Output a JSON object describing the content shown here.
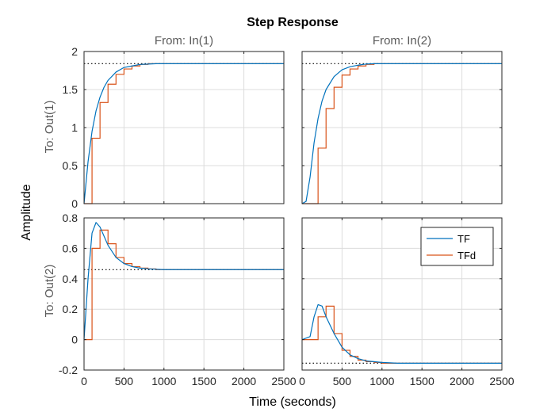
{
  "chart_data": {
    "type": "line",
    "title": "Step Response",
    "xlabel": "Time (seconds)",
    "ylabel": "Amplitude",
    "column_titles": [
      "From: In(1)",
      "From: In(2)"
    ],
    "row_labels": [
      "To: Out(1)",
      "To: Out(2)"
    ],
    "xlim": [
      0,
      2500
    ],
    "x_ticks": [
      0,
      500,
      1000,
      1500,
      2000,
      2500
    ],
    "grid": true,
    "legend": {
      "placement": "top-right",
      "panel": "out2-in2",
      "entries": [
        "TF",
        "TFd"
      ]
    },
    "colors": {
      "TF": "#0072BD",
      "TFd": "#D95319",
      "steady_state": "#000000"
    },
    "row_axes": [
      {
        "ylim": [
          0,
          2
        ],
        "y_ticks": [
          0,
          0.5,
          1,
          1.5,
          2
        ],
        "y_tick_labels": [
          "0",
          "0.5",
          "1",
          "1.5",
          "2"
        ]
      },
      {
        "ylim": [
          -0.2,
          0.8
        ],
        "y_ticks": [
          -0.2,
          0,
          0.2,
          0.4,
          0.6,
          0.8
        ],
        "y_tick_labels": [
          "-0.2",
          "0",
          "0.2",
          "0.4",
          "0.6",
          "0.8"
        ]
      }
    ],
    "panels": [
      {
        "id": "out1-in1",
        "row": 0,
        "col": 0,
        "steady_state": 1.84,
        "series": [
          {
            "name": "TF",
            "x": [
              0,
              50,
              100,
              150,
              200,
              250,
              300,
              400,
              500,
              600,
              700,
              800,
              900,
              1000,
              1200,
              1500,
              2000,
              2500
            ],
            "y": [
              0,
              0.55,
              0.95,
              1.22,
              1.4,
              1.53,
              1.62,
              1.73,
              1.79,
              1.81,
              1.83,
              1.835,
              1.84,
              1.84,
              1.84,
              1.84,
              1.84,
              1.84
            ]
          },
          {
            "name": "TFd",
            "x": [
              0,
              100,
              200,
              300,
              400,
              500,
              600,
              700,
              800,
              900,
              1000,
              2500
            ],
            "y": [
              0,
              0.86,
              1.33,
              1.57,
              1.7,
              1.77,
              1.81,
              1.83,
              1.84,
              1.84,
              1.84,
              1.84
            ]
          }
        ]
      },
      {
        "id": "out1-in2",
        "row": 0,
        "col": 1,
        "steady_state": 1.84,
        "series": [
          {
            "name": "TF",
            "x": [
              0,
              50,
              100,
              150,
              200,
              250,
              300,
              400,
              500,
              600,
              700,
              800,
              900,
              1000,
              1200,
              1500,
              2000,
              2500
            ],
            "y": [
              0,
              0.03,
              0.35,
              0.8,
              1.12,
              1.35,
              1.5,
              1.67,
              1.76,
              1.8,
              1.82,
              1.835,
              1.84,
              1.84,
              1.84,
              1.84,
              1.84,
              1.84
            ]
          },
          {
            "name": "TFd",
            "x": [
              0,
              200,
              300,
              400,
              500,
              600,
              700,
              800,
              900,
              1000,
              2500
            ],
            "y": [
              0,
              0.73,
              1.25,
              1.53,
              1.69,
              1.77,
              1.81,
              1.83,
              1.84,
              1.84,
              1.84
            ]
          }
        ]
      },
      {
        "id": "out2-in1",
        "row": 1,
        "col": 0,
        "steady_state": 0.46,
        "series": [
          {
            "name": "TF",
            "x": [
              0,
              50,
              100,
              150,
              200,
              250,
              300,
              400,
              500,
              600,
              700,
              800,
              1000,
              1200,
              1500,
              2000,
              2500
            ],
            "y": [
              0,
              0.4,
              0.7,
              0.77,
              0.74,
              0.68,
              0.62,
              0.54,
              0.5,
              0.48,
              0.47,
              0.465,
              0.46,
              0.46,
              0.46,
              0.46,
              0.46
            ]
          },
          {
            "name": "TFd",
            "x": [
              0,
              100,
              200,
              300,
              400,
              500,
              600,
              700,
              800,
              900,
              1000,
              2500
            ],
            "y": [
              0,
              0.6,
              0.72,
              0.63,
              0.54,
              0.5,
              0.48,
              0.47,
              0.465,
              0.46,
              0.46,
              0.46
            ]
          }
        ]
      },
      {
        "id": "out2-in2",
        "row": 1,
        "col": 1,
        "steady_state": -0.155,
        "series": [
          {
            "name": "TF",
            "x": [
              0,
              100,
              150,
              200,
              250,
              300,
              400,
              500,
              600,
              700,
              800,
              1000,
              1200,
              1500,
              2000,
              2500
            ],
            "y": [
              0,
              0.02,
              0.15,
              0.23,
              0.22,
              0.15,
              0.04,
              -0.05,
              -0.1,
              -0.125,
              -0.14,
              -0.15,
              -0.155,
              -0.155,
              -0.155,
              -0.155
            ]
          },
          {
            "name": "TFd",
            "x": [
              0,
              200,
              300,
              400,
              500,
              600,
              700,
              800,
              900,
              1000,
              1200,
              2500
            ],
            "y": [
              0,
              0.15,
              0.22,
              0.04,
              -0.07,
              -0.11,
              -0.135,
              -0.145,
              -0.15,
              -0.155,
              -0.155,
              -0.155
            ]
          }
        ]
      }
    ]
  }
}
